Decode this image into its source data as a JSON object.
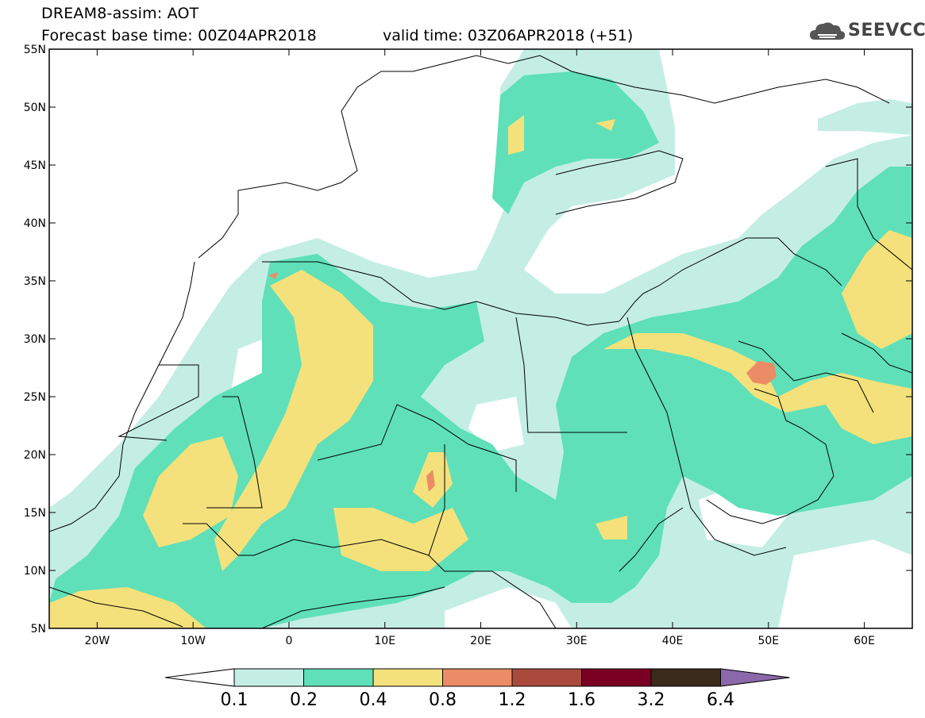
{
  "header": {
    "model_title": "DREAM8-assim: AOT",
    "base_time": "Forecast base time: 00Z04APR2018",
    "valid_time": "valid time: 03Z06APR2018 (+51)"
  },
  "logo": {
    "text": "SEEVCCC",
    "icon": "cloud-icon"
  },
  "map": {
    "lat_labels": [
      "55N",
      "50N",
      "45N",
      "40N",
      "35N",
      "30N",
      "25N",
      "20N",
      "15N",
      "10N",
      "5N"
    ],
    "lon_labels": [
      "20W",
      "10W",
      "0",
      "10E",
      "20E",
      "30E",
      "40E",
      "50E",
      "60E"
    ],
    "lat_range": [
      5,
      55
    ],
    "lon_range": [
      -25,
      65
    ]
  },
  "colorbar": {
    "thresholds": [
      "0.1",
      "0.2",
      "0.4",
      "0.8",
      "1.2",
      "1.6",
      "3.2",
      "6.4"
    ],
    "colors": [
      "#ffffff",
      "#c4eee4",
      "#5fe0b8",
      "#f5e17c",
      "#eb8c66",
      "#a94a3c",
      "#7a0023",
      "#3a2a1a",
      "#8b68a9"
    ]
  },
  "colors": {
    "low": "#c4eee4",
    "mid": "#5fe0b8",
    "high": "#f5e17c",
    "peak": "#eb8c66",
    "border": "#000000"
  }
}
